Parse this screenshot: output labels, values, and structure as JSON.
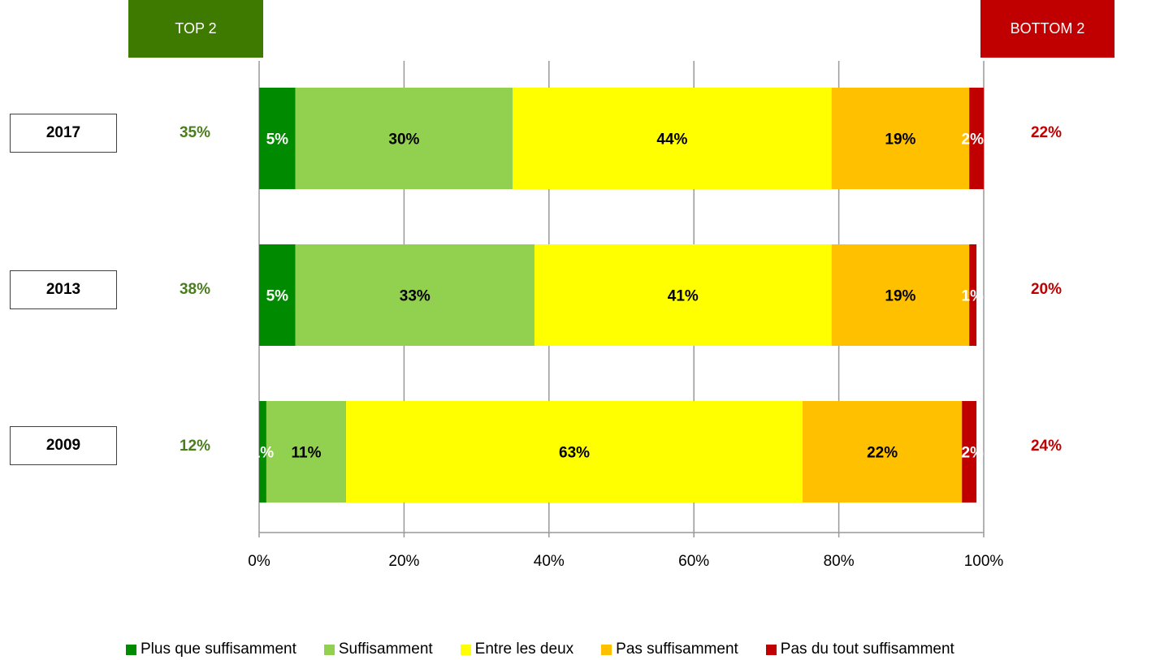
{
  "badges": {
    "top_label": "TOP 2",
    "top_color": "#3f7a00",
    "bottom_label": "BOTTOM 2",
    "bottom_color": "#c00000"
  },
  "colors": {
    "top_text": "#4a7d1e",
    "bottom_text": "#c00000",
    "grid": "#999999"
  },
  "chart_data": {
    "type": "bar",
    "orientation": "horizontal",
    "stacked": true,
    "categories": [
      "2017",
      "2013",
      "2009"
    ],
    "series": [
      {
        "name": "Plus que suffisamment",
        "color": "#008a00",
        "values": [
          5,
          5,
          1
        ],
        "labels": [
          "5%",
          "5%",
          "1%"
        ],
        "label_color": "#ffffff"
      },
      {
        "name": "Suffisamment",
        "color": "#92d050",
        "values": [
          30,
          33,
          11
        ],
        "labels": [
          "30%",
          "33%",
          "11%"
        ],
        "label_color": "#000000"
      },
      {
        "name": "Entre les deux",
        "color": "#ffff00",
        "values": [
          44,
          41,
          63
        ],
        "labels": [
          "44%",
          "41%",
          "63%"
        ],
        "label_color": "#000000"
      },
      {
        "name": "Pas suffisamment",
        "color": "#ffc000",
        "values": [
          19,
          19,
          22
        ],
        "labels": [
          "19%",
          "19%",
          "22%"
        ],
        "label_color": "#000000"
      },
      {
        "name": "Pas du tout suffisamment",
        "color": "#c00000",
        "values": [
          2,
          1,
          2
        ],
        "labels": [
          "2%",
          "1%",
          "2%"
        ],
        "label_color": "#ffffff"
      }
    ],
    "top2": [
      "35%",
      "38%",
      "12%"
    ],
    "bottom2": [
      "22%",
      "20%",
      "24%"
    ],
    "xticks": [
      "0%",
      "20%",
      "40%",
      "60%",
      "80%",
      "100%"
    ],
    "xlim": [
      0,
      100
    ],
    "grid": true,
    "legend_position": "bottom"
  }
}
